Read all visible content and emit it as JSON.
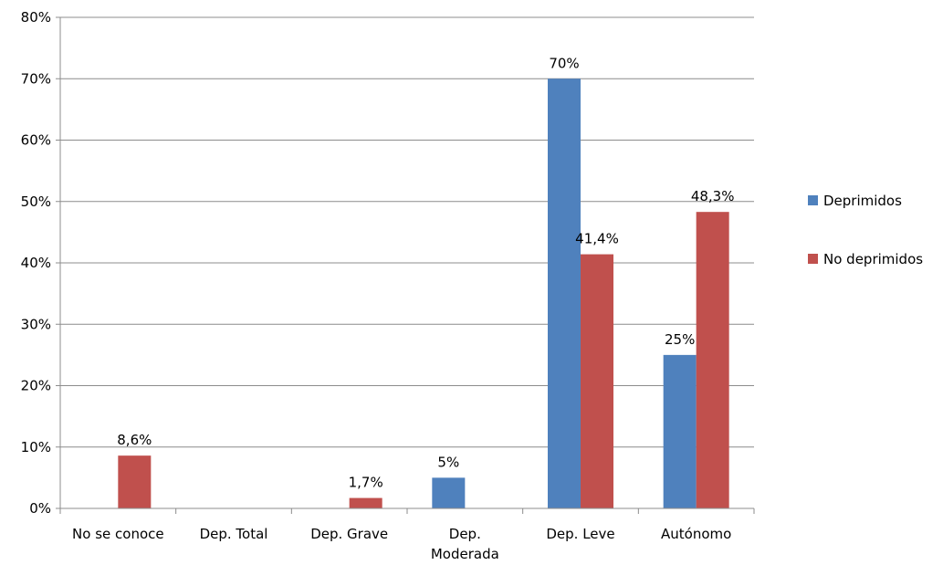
{
  "chart_data": {
    "type": "bar",
    "categories": [
      [
        "No se conoce"
      ],
      [
        "Dep. Total"
      ],
      [
        "Dep. Grave"
      ],
      [
        "Dep.",
        "Moderada"
      ],
      [
        "Dep. Leve"
      ],
      [
        "Autónomo"
      ]
    ],
    "series": [
      {
        "name": "Deprimidos",
        "color": "#4F81BD",
        "values": [
          0,
          0,
          0,
          5,
          70,
          25
        ],
        "labels": [
          null,
          null,
          null,
          "5%",
          "70%",
          "25%"
        ]
      },
      {
        "name": "No deprimidos",
        "color": "#C0504D",
        "values": [
          8.6,
          0,
          1.7,
          0,
          41.4,
          48.3
        ],
        "labels": [
          "8,6%",
          null,
          "1,7%",
          null,
          "41,4%",
          "48,3%"
        ]
      }
    ],
    "ylim": [
      0,
      80
    ],
    "yticks": [
      "0%",
      "10%",
      "20%",
      "30%",
      "40%",
      "50%",
      "60%",
      "70%",
      "80%"
    ],
    "grid": true,
    "legend_position": "right",
    "title": "",
    "xlabel": "",
    "ylabel": ""
  }
}
